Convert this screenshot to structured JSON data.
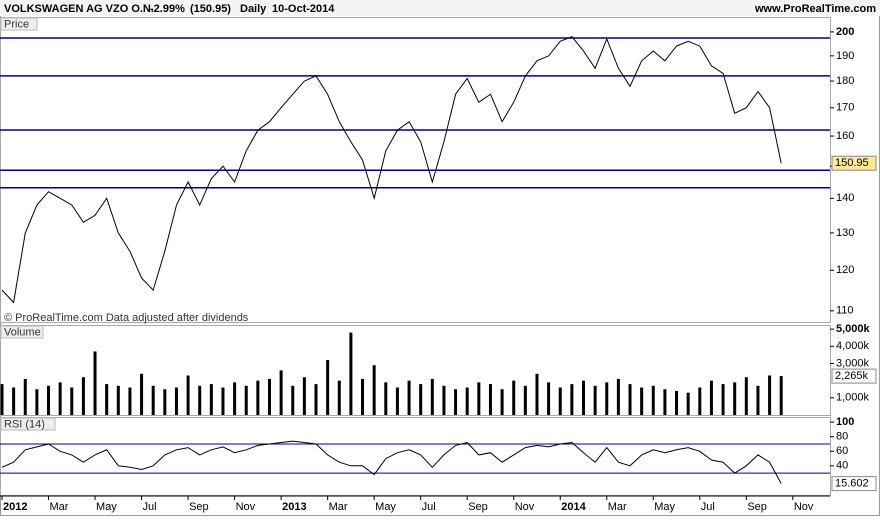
{
  "header": {
    "title": "VOLKSWAGEN AG VZO O.N.",
    "change": "-2.99%",
    "close": "(150.95)",
    "period": "Daily",
    "date": "10-Oct-2014",
    "site": "www.ProRealTime.com"
  },
  "footnote": "© ProRealTime.com  Data adjusted after dividends",
  "chart_data": [
    {
      "type": "line",
      "title": "Price",
      "log_scale": true,
      "color": "#000000",
      "line_color": "#000080",
      "values": [
        115,
        112,
        130,
        138,
        142,
        140,
        138,
        133,
        135,
        140,
        130,
        125,
        118,
        115,
        125,
        138,
        145,
        138,
        146,
        150,
        145,
        155,
        162,
        165,
        170,
        175,
        180,
        182,
        175,
        165,
        158,
        152,
        140,
        155,
        162,
        165,
        158,
        145,
        158,
        175,
        181,
        172,
        175,
        165,
        172,
        182,
        188,
        190,
        196,
        198,
        192,
        185,
        197,
        185,
        178,
        188,
        192,
        188,
        194,
        196,
        194,
        186,
        183,
        168,
        170,
        176,
        170,
        150.95,
        null
      ],
      "ylim": [
        107.4,
        206.5
      ],
      "yticks": [
        110,
        120,
        130,
        140,
        150,
        160,
        170,
        180,
        190,
        200
      ],
      "hlines": [
        197.4,
        182,
        162.1,
        148.7,
        143.2
      ],
      "last": 150.95
    },
    {
      "type": "bar",
      "title": "Volume",
      "color": "#000000",
      "values": [
        1800000,
        1600000,
        2100000,
        1500000,
        1700000,
        1900000,
        1600000,
        2200000,
        3700000,
        1800000,
        1700000,
        1600000,
        2400000,
        1700000,
        1500000,
        1600000,
        2300000,
        1700000,
        1800000,
        1600000,
        1900000,
        1700000,
        2000000,
        2100000,
        2600000,
        1700000,
        2200000,
        1800000,
        3200000,
        2000000,
        4800000,
        2100000,
        2900000,
        1900000,
        1600000,
        2000000,
        1800000,
        2100000,
        1700000,
        1500000,
        1600000,
        1900000,
        1800000,
        1500000,
        2000000,
        1700000,
        2400000,
        1900000,
        1600000,
        1800000,
        2000000,
        1700000,
        1900000,
        2100000,
        1800000,
        1600000,
        1700000,
        1500000,
        1400000,
        1300000,
        1600000,
        2000000,
        1800000,
        1900000,
        2200000,
        1700000,
        2300000,
        2265000,
        null
      ],
      "ylim": [
        0,
        5240000
      ],
      "yticks": [
        {
          "value": 1000000,
          "label": "1,000k"
        },
        {
          "value": 3000000,
          "label": "3,000k"
        },
        {
          "value": 4000000,
          "label": "4,000k"
        },
        {
          "value": 5000000,
          "label": "5,000k"
        }
      ],
      "last": {
        "value": 2265000,
        "label": "2,265k"
      }
    },
    {
      "type": "line",
      "title": "RSI (14)",
      "color": "#000000",
      "line_color": "#000080",
      "categories": [
        "2012",
        null,
        null,
        null,
        "Mar",
        null,
        null,
        null,
        "May",
        null,
        null,
        null,
        "Jul",
        null,
        null,
        null,
        "Sep",
        null,
        null,
        null,
        "Nov",
        null,
        null,
        null,
        "2013",
        null,
        null,
        null,
        "Mar",
        null,
        null,
        null,
        "May",
        null,
        null,
        null,
        "Jul",
        null,
        null,
        null,
        "Sep",
        null,
        null,
        null,
        "Nov",
        null,
        null,
        null,
        "2014",
        null,
        null,
        null,
        "Mar",
        null,
        null,
        null,
        "May",
        null,
        null,
        null,
        "Jul",
        null,
        null,
        null,
        "Sep",
        null,
        null,
        null,
        "Nov"
      ],
      "values": [
        38,
        45,
        62,
        66,
        70,
        60,
        55,
        45,
        55,
        62,
        40,
        38,
        35,
        40,
        55,
        62,
        65,
        55,
        62,
        66,
        58,
        62,
        68,
        70,
        72,
        74,
        72,
        70,
        55,
        45,
        40,
        40,
        28,
        50,
        58,
        62,
        55,
        38,
        55,
        68,
        72,
        55,
        58,
        45,
        55,
        65,
        68,
        66,
        70,
        72,
        58,
        45,
        65,
        45,
        40,
        55,
        62,
        58,
        62,
        65,
        60,
        48,
        45,
        30,
        40,
        55,
        45,
        15.602,
        null
      ],
      "ylim": [
        0,
        107
      ],
      "yticks": [
        40,
        60,
        80,
        100
      ],
      "hlines": [
        30,
        70
      ],
      "last": 15.602
    }
  ]
}
